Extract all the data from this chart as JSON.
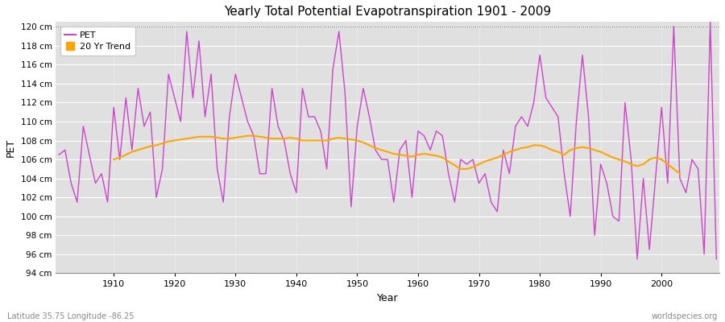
{
  "title": "Yearly Total Potential Evapotranspiration 1901 - 2009",
  "xlabel": "Year",
  "ylabel": "PET",
  "lat_lon_label": "Latitude 35.75 Longitude -86.25",
  "source_label": "worldspecies.org",
  "pet_color": "#cc44cc",
  "trend_color": "#FFA500",
  "fig_bg_color": "#ffffff",
  "plot_bg_color": "#e0e0e0",
  "ylim": [
    94,
    120
  ],
  "ylim_display": [
    94,
    120
  ],
  "ytick_step": 2,
  "years": [
    1901,
    1902,
    1903,
    1904,
    1905,
    1906,
    1907,
    1908,
    1909,
    1910,
    1911,
    1912,
    1913,
    1914,
    1915,
    1916,
    1917,
    1918,
    1919,
    1920,
    1921,
    1922,
    1923,
    1924,
    1925,
    1926,
    1927,
    1928,
    1929,
    1930,
    1931,
    1932,
    1933,
    1934,
    1935,
    1936,
    1937,
    1938,
    1939,
    1940,
    1941,
    1942,
    1943,
    1944,
    1945,
    1946,
    1947,
    1948,
    1949,
    1950,
    1951,
    1952,
    1953,
    1954,
    1955,
    1956,
    1957,
    1958,
    1959,
    1960,
    1961,
    1962,
    1963,
    1964,
    1965,
    1966,
    1967,
    1968,
    1969,
    1970,
    1971,
    1972,
    1973,
    1974,
    1975,
    1976,
    1977,
    1978,
    1979,
    1980,
    1981,
    1982,
    1983,
    1984,
    1985,
    1986,
    1987,
    1988,
    1989,
    1990,
    1991,
    1992,
    1993,
    1994,
    1995,
    1996,
    1997,
    1998,
    1999,
    2000,
    2001,
    2002,
    2003,
    2004,
    2005,
    2006,
    2007,
    2008,
    2009
  ],
  "pet": [
    106.5,
    107.0,
    103.5,
    101.5,
    109.5,
    106.5,
    103.5,
    104.5,
    101.5,
    111.5,
    106.0,
    112.5,
    107.0,
    113.5,
    109.5,
    111.0,
    102.0,
    105.0,
    115.0,
    112.5,
    110.0,
    119.5,
    112.5,
    118.5,
    110.5,
    115.0,
    105.0,
    101.5,
    110.5,
    115.0,
    112.5,
    110.0,
    108.5,
    104.5,
    104.5,
    113.5,
    109.5,
    108.0,
    104.5,
    102.5,
    113.5,
    110.5,
    110.5,
    109.0,
    105.0,
    115.5,
    119.5,
    113.0,
    101.0,
    109.5,
    113.5,
    110.5,
    107.0,
    106.0,
    106.0,
    101.5,
    107.0,
    108.0,
    102.0,
    109.0,
    108.5,
    107.0,
    109.0,
    108.5,
    104.5,
    101.5,
    106.0,
    105.5,
    106.0,
    103.5,
    104.5,
    101.5,
    100.5,
    107.0,
    104.5,
    109.5,
    110.5,
    109.5,
    112.0,
    117.0,
    112.5,
    111.5,
    110.5,
    104.5,
    100.0,
    110.0,
    117.0,
    110.5,
    98.0,
    105.5,
    103.5,
    100.0,
    99.5,
    112.0,
    106.0,
    95.5,
    104.0,
    96.5,
    104.0,
    111.5,
    103.5,
    120.0,
    104.0,
    102.5,
    106.0,
    105.0,
    96.0,
    120.5,
    95.5
  ],
  "trend": [
    null,
    null,
    null,
    null,
    null,
    null,
    null,
    null,
    null,
    106.0,
    106.2,
    106.5,
    106.8,
    107.0,
    107.2,
    107.4,
    107.5,
    107.7,
    107.9,
    108.0,
    108.1,
    108.2,
    108.3,
    108.4,
    108.4,
    108.4,
    108.3,
    108.2,
    108.2,
    108.3,
    108.4,
    108.5,
    108.5,
    108.4,
    108.3,
    108.2,
    108.2,
    108.2,
    108.3,
    108.2,
    108.0,
    108.0,
    108.0,
    108.0,
    108.0,
    108.2,
    108.3,
    108.2,
    108.1,
    108.0,
    107.8,
    107.5,
    107.2,
    107.0,
    106.8,
    106.6,
    106.5,
    106.4,
    106.3,
    106.5,
    106.6,
    106.5,
    106.4,
    106.2,
    105.8,
    105.4,
    105.0,
    105.0,
    105.2,
    105.5,
    105.8,
    106.0,
    106.2,
    106.5,
    106.8,
    107.0,
    107.2,
    107.3,
    107.5,
    107.5,
    107.3,
    107.0,
    106.8,
    106.5,
    107.0,
    107.2,
    107.3,
    107.2,
    107.0,
    106.8,
    106.5,
    106.2,
    106.0,
    105.8,
    105.5,
    105.3,
    105.5,
    106.0,
    106.2,
    106.0,
    105.5,
    105.0,
    104.5,
    null,
    null,
    null,
    null,
    null
  ]
}
